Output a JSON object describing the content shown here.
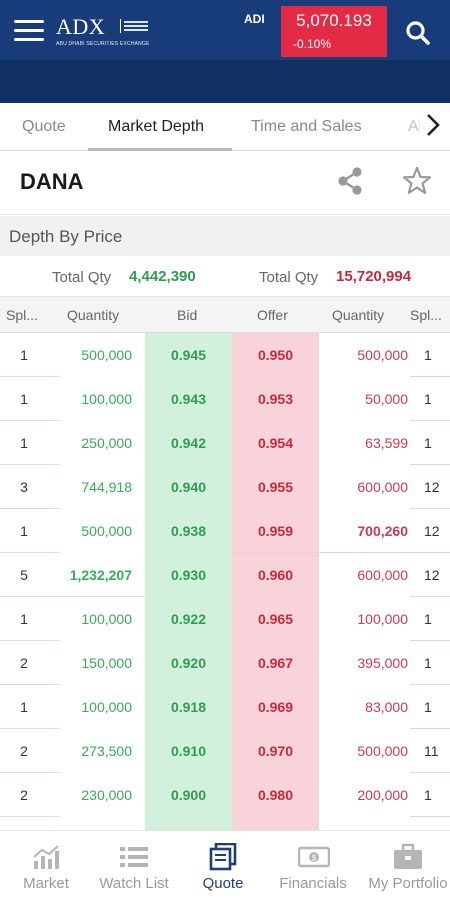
{
  "header": {
    "logo_text": "ADX",
    "logo_subtitle": "ABU DHABI SECURITIES EXCHANGE",
    "index_label": "ADI",
    "index_value": "5,070.193",
    "index_change": "-0.10%",
    "index_color": "#e32b46"
  },
  "tabs": [
    {
      "label": "Quote"
    },
    {
      "label": "Market Depth"
    },
    {
      "label": "Time and Sales"
    },
    {
      "label": "Alert"
    }
  ],
  "symbol": "DANA",
  "section": {
    "title": "Depth By Price",
    "bid_total_label": "Total Qty",
    "bid_total_value": "4,442,390",
    "offer_total_label": "Total Qty",
    "offer_total_value": "15,720,994"
  },
  "columns": [
    "Spl...",
    "Quantity",
    "Bid",
    "Offer",
    "Quantity",
    "Spl..."
  ],
  "rows": [
    {
      "bsplit": "1",
      "bqty": "500,000",
      "bid": "0.945",
      "offer": "0.950",
      "oqty": "500,000",
      "osplit": "1"
    },
    {
      "bsplit": "1",
      "bqty": "100,000",
      "bid": "0.943",
      "offer": "0.953",
      "oqty": "50,000",
      "osplit": "1"
    },
    {
      "bsplit": "1",
      "bqty": "250,000",
      "bid": "0.942",
      "offer": "0.954",
      "oqty": "63,599",
      "osplit": "1"
    },
    {
      "bsplit": "3",
      "bqty": "744,918",
      "bid": "0.940",
      "offer": "0.955",
      "oqty": "600,000",
      "osplit": "12"
    },
    {
      "bsplit": "1",
      "bqty": "500,000",
      "bid": "0.938",
      "offer": "0.959",
      "oqty": "700,260",
      "osplit": "12"
    },
    {
      "bsplit": "5",
      "bqty": "1,232,207",
      "bid": "0.930",
      "offer": "0.960",
      "oqty": "600,000",
      "osplit": "12"
    },
    {
      "bsplit": "1",
      "bqty": "100,000",
      "bid": "0.922",
      "offer": "0.965",
      "oqty": "100,000",
      "osplit": "1"
    },
    {
      "bsplit": "2",
      "bqty": "150,000",
      "bid": "0.920",
      "offer": "0.967",
      "oqty": "395,000",
      "osplit": "1"
    },
    {
      "bsplit": "1",
      "bqty": "100,000",
      "bid": "0.918",
      "offer": "0.969",
      "oqty": "83,000",
      "osplit": "1"
    },
    {
      "bsplit": "2",
      "bqty": "273,500",
      "bid": "0.910",
      "offer": "0.970",
      "oqty": "500,000",
      "osplit": "11"
    },
    {
      "bsplit": "2",
      "bqty": "230,000",
      "bid": "0.900",
      "offer": "0.980",
      "oqty": "200,000",
      "osplit": "1"
    }
  ],
  "nav": [
    {
      "label": "Market",
      "icon": "chart-icon"
    },
    {
      "label": "Watch List",
      "icon": "list-icon"
    },
    {
      "label": "Quote",
      "icon": "quote-icon"
    },
    {
      "label": "Financials",
      "icon": "money-icon"
    },
    {
      "label": "My Portfolio",
      "icon": "briefcase-icon"
    }
  ],
  "colors": {
    "header": "#173c79",
    "bid_green": "#2f9c52",
    "offer_red": "#c8283e",
    "bid_bg": "#d2f1dc",
    "offer_bg": "#f8d3d9"
  }
}
